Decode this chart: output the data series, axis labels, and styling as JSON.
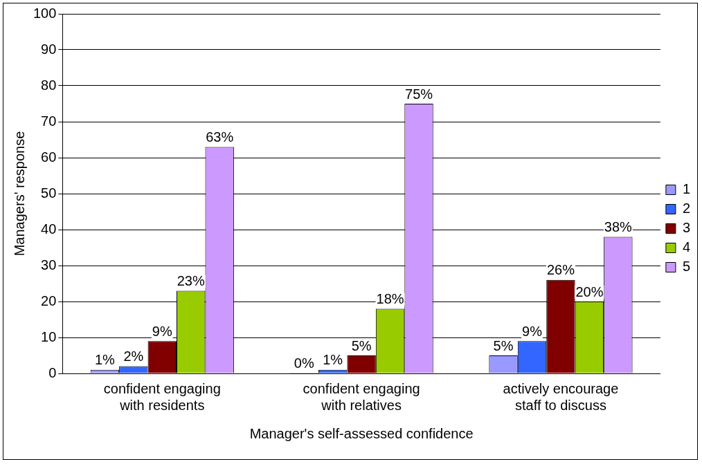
{
  "chart_data": {
    "type": "bar",
    "xlabel": "Manager's self-assessed confidence",
    "ylabel": "Managers' response",
    "categories": [
      "confident engaging with residents",
      "confident engaging with relatives",
      "actively encourage staff to discuss"
    ],
    "series": [
      {
        "name": "1",
        "color": "#9999ff",
        "values": [
          1,
          0,
          5
        ],
        "value_labels": [
          "1%",
          "0%",
          "5%"
        ]
      },
      {
        "name": "2",
        "color": "#3366ff",
        "values": [
          2,
          1,
          9
        ],
        "value_labels": [
          "2%",
          "1%",
          "9%"
        ]
      },
      {
        "name": "3",
        "color": "#800000",
        "values": [
          9,
          5,
          26
        ],
        "value_labels": [
          "9%",
          "5%",
          "26%"
        ]
      },
      {
        "name": "4",
        "color": "#99cc00",
        "values": [
          23,
          18,
          20
        ],
        "value_labels": [
          "23%",
          "18%",
          "20%"
        ]
      },
      {
        "name": "5",
        "color": "#cc99ff",
        "values": [
          63,
          75,
          38
        ],
        "value_labels": [
          "63%",
          "75%",
          "38%"
        ]
      }
    ],
    "ylim": [
      0,
      100
    ],
    "yticks": [
      0,
      10,
      20,
      30,
      40,
      50,
      60,
      70,
      80,
      90,
      100
    ],
    "grid": "y",
    "legend": "right"
  }
}
